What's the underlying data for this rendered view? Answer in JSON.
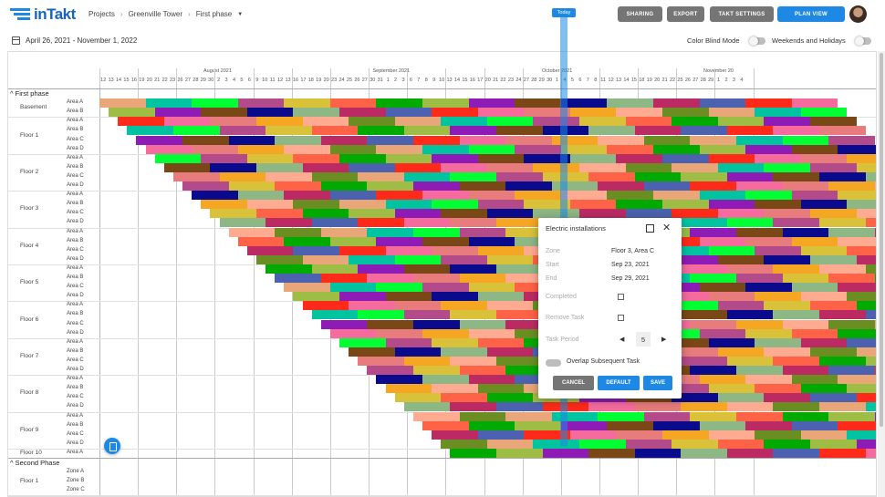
{
  "app": {
    "logo_text": "inTakt"
  },
  "breadcrumb": {
    "items": [
      "Projects",
      "Greenville Tower",
      "First phase"
    ]
  },
  "toolbar": {
    "sharing": "SHARING",
    "export": "EXPORT",
    "takt_settings": "TAKT SETTINGS",
    "plan_view": "PLAN VIEW"
  },
  "subbar": {
    "date_range": "April 26, 2021 - November 1, 2022",
    "color_blind": "Color Blind Mode",
    "weekends": "Weekends and Holidays"
  },
  "timeline": {
    "months": [
      {
        "label": "August 2021",
        "col": 14
      },
      {
        "label": "September 2021",
        "col": 36
      },
      {
        "label": "October 2021",
        "col": 58
      },
      {
        "label": "November 20",
        "col": 79
      }
    ],
    "days": [
      "12",
      "13",
      "14",
      "15",
      "16",
      "19",
      "20",
      "21",
      "22",
      "23",
      "26",
      "27",
      "28",
      "29",
      "30",
      "2",
      "3",
      "4",
      "5",
      "6",
      "9",
      "10",
      "11",
      "12",
      "13",
      "16",
      "17",
      "18",
      "19",
      "20",
      "23",
      "24",
      "25",
      "26",
      "27",
      "30",
      "31",
      "1",
      "2",
      "3",
      "6",
      "7",
      "8",
      "9",
      "10",
      "13",
      "14",
      "15",
      "16",
      "17",
      "20",
      "21",
      "22",
      "23",
      "24",
      "27",
      "28",
      "29",
      "30",
      "1",
      "4",
      "5",
      "6",
      "7",
      "8",
      "11",
      "12",
      "13",
      "14",
      "15",
      "18",
      "19",
      "20",
      "21",
      "22",
      "25",
      "26",
      "27",
      "28",
      "29",
      "1",
      "2",
      "3",
      "4"
    ],
    "today_label": "Today"
  },
  "phases": [
    {
      "name": "First phase",
      "floors": [
        {
          "name": "Basement",
          "areas": [
            "Area A",
            "Area B"
          ]
        },
        {
          "name": "Floor 1",
          "areas": [
            "Area A",
            "Area B",
            "Area C",
            "Area D"
          ]
        },
        {
          "name": "Floor 2",
          "areas": [
            "Area A",
            "Area B",
            "Area C",
            "Area D"
          ]
        },
        {
          "name": "Floor 3",
          "areas": [
            "Area A",
            "Area B",
            "Area C",
            "Area D"
          ]
        },
        {
          "name": "Floor 4",
          "areas": [
            "Area A",
            "Area B",
            "Area C",
            "Area D"
          ]
        },
        {
          "name": "Floor 5",
          "areas": [
            "Area A",
            "Area B",
            "Area C",
            "Area D"
          ]
        },
        {
          "name": "Floor 6",
          "areas": [
            "Area A",
            "Area B",
            "Area C",
            "Area D"
          ]
        },
        {
          "name": "Floor 7",
          "areas": [
            "Area A",
            "Area B",
            "Area C",
            "Area D"
          ]
        },
        {
          "name": "Floor 8",
          "areas": [
            "Area A",
            "Area B",
            "Area C",
            "Area D"
          ]
        },
        {
          "name": "Floor 9",
          "areas": [
            "Area A",
            "Area B",
            "Area C",
            "Area D"
          ]
        },
        {
          "name": "Floor 10",
          "areas": [
            "Area A"
          ]
        }
      ]
    },
    {
      "name": "Second Phase",
      "floors": [
        {
          "name": "Floor 1",
          "areas": [
            "Zone A",
            "Zone B",
            "Zone C"
          ]
        }
      ]
    }
  ],
  "task_colors": [
    "#e9a678",
    "#9dbd45",
    "#ff2a1a",
    "#00c3a0",
    "#8e1bb5",
    "#f56b9e",
    "#00ff33",
    "#7a4817",
    "#e87b7b",
    "#b34a8a",
    "#0a0a8c",
    "#f5a623",
    "#d9c23a",
    "#8db784",
    "#ffab91",
    "#ff6347",
    "#bc2a64",
    "#6b8e23",
    "#00aa00",
    "#4c62b0"
  ],
  "dialog": {
    "title": "Electric installations",
    "zone_label": "Zone",
    "zone_value": "Floor 3, Area C",
    "start_label": "Start",
    "start_value": "Sep 23, 2021",
    "end_label": "End",
    "end_value": "Sep 29, 2021",
    "completed_label": "Completed",
    "remove_label": "Remove Task",
    "period_label": "Task Period",
    "period_value": "5",
    "overlap_label": "Overlap Subsequent Task",
    "cancel": "CANCEL",
    "default": "DEFAULT",
    "save": "SAVE"
  }
}
